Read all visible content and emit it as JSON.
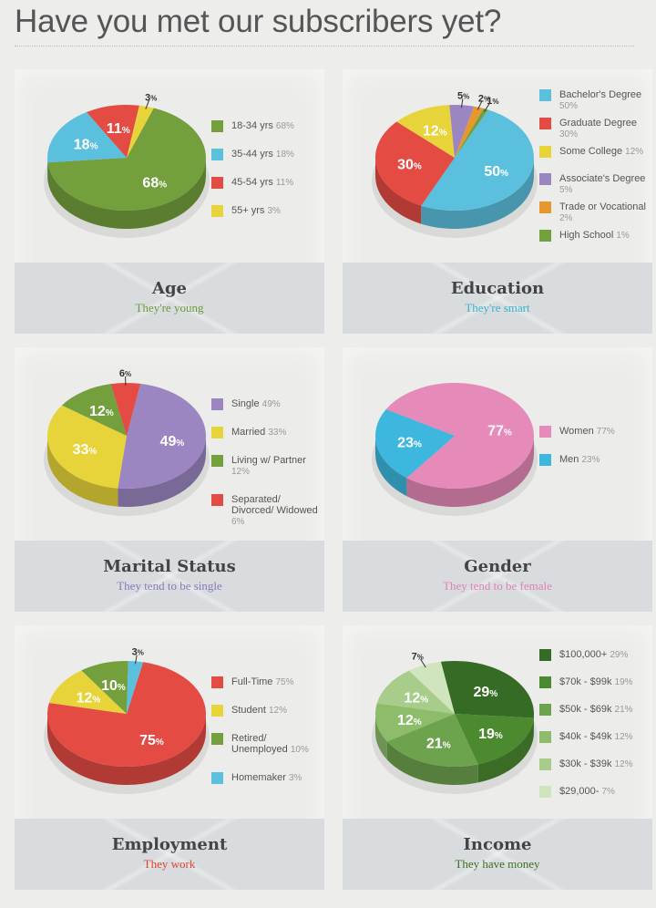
{
  "page": {
    "title": "Have you met our subscribers yet?"
  },
  "panels": [
    {
      "id": "age",
      "title": "Age",
      "subtitle": "They're young",
      "subtitle_color": "#6a9a3a",
      "legend": [
        {
          "label": "18-34 yrs",
          "pct": "68%",
          "color": "#73a03c"
        },
        {
          "label": "35-44 yrs",
          "pct": "18%",
          "color": "#5bc0de"
        },
        {
          "label": "45-54 yrs",
          "pct": "11%",
          "color": "#e34b43"
        },
        {
          "label": "55+ yrs",
          "pct": "3%",
          "color": "#e7d43a"
        }
      ]
    },
    {
      "id": "education",
      "title": "Education",
      "subtitle": "They're smart",
      "subtitle_color": "#3ab0d0",
      "legend": [
        {
          "label": "Bachelor's Degree",
          "pct": "50%",
          "color": "#5bc0de"
        },
        {
          "label": "Graduate Degree",
          "pct": "30%",
          "color": "#e34b43"
        },
        {
          "label": "Some College",
          "pct": "12%",
          "color": "#e7d43a"
        },
        {
          "label": "Associate's Degree",
          "pct": "5%",
          "color": "#9b86c2"
        },
        {
          "label": "Trade or Vocational",
          "pct": "2%",
          "color": "#e8972f"
        },
        {
          "label": "High School",
          "pct": "1%",
          "color": "#73a03c"
        }
      ]
    },
    {
      "id": "marital",
      "title": "Marital Status",
      "subtitle": "They tend to be single",
      "subtitle_color": "#8a78be",
      "legend": [
        {
          "label": "Single",
          "pct": "49%",
          "color": "#9b86c2"
        },
        {
          "label": "Married",
          "pct": "33%",
          "color": "#e7d43a"
        },
        {
          "label": "Living w/ Partner",
          "pct": "12%",
          "color": "#73a03c"
        },
        {
          "label": "Separated/ Divorced/ Widowed",
          "pct": "6%",
          "color": "#e34b43"
        }
      ]
    },
    {
      "id": "gender",
      "title": "Gender",
      "subtitle": "They tend to be female",
      "subtitle_color": "#e27eb5",
      "legend": [
        {
          "label": "Women",
          "pct": "77%",
          "color": "#e68ab9"
        },
        {
          "label": "Men",
          "pct": "23%",
          "color": "#3db7dd"
        }
      ]
    },
    {
      "id": "employment",
      "title": "Employment",
      "subtitle": "They work",
      "subtitle_color": "#e2402f",
      "legend": [
        {
          "label": "Full-Time",
          "pct": "75%",
          "color": "#e34b43"
        },
        {
          "label": "Student",
          "pct": "12%",
          "color": "#e7d43a"
        },
        {
          "label": "Retired/ Unemployed",
          "pct": "10%",
          "color": "#73a03c"
        },
        {
          "label": "Homemaker",
          "pct": "3%",
          "color": "#5bc0de"
        }
      ]
    },
    {
      "id": "income",
      "title": "Income",
      "subtitle": "They have money",
      "subtitle_color": "#3c6e22",
      "legend": [
        {
          "label": "$100,000+",
          "pct": "29%",
          "color": "#356b25"
        },
        {
          "label": "$70k - $99k",
          "pct": "19%",
          "color": "#4b8a2f"
        },
        {
          "label": "$50k - $69k",
          "pct": "21%",
          "color": "#6ea34e"
        },
        {
          "label": "$40k - $49k",
          "pct": "12%",
          "color": "#8dbc6a"
        },
        {
          "label": "$30k - $39k",
          "pct": "12%",
          "color": "#a8cd8a"
        },
        {
          "label": "$29,000-",
          "pct": "7%",
          "color": "#d0e4bd"
        }
      ]
    }
  ],
  "chart_data": [
    {
      "type": "pie",
      "title": "Age",
      "categories": [
        "18-34 yrs",
        "35-44 yrs",
        "45-54 yrs",
        "55+ yrs"
      ],
      "values": [
        68,
        18,
        11,
        3
      ],
      "labels": [
        "68%",
        "18%",
        "11%",
        "3%"
      ],
      "colors": [
        "#73a03c",
        "#5bc0de",
        "#e34b43",
        "#e7d43a"
      ]
    },
    {
      "type": "pie",
      "title": "Education",
      "categories": [
        "Bachelor's Degree",
        "Graduate Degree",
        "Some College",
        "Associate's Degree",
        "Trade or Vocational",
        "High School"
      ],
      "values": [
        50,
        30,
        12,
        5,
        2,
        1
      ],
      "labels": [
        "50%",
        "30%",
        "12%",
        "5%",
        "2%",
        "1%"
      ],
      "colors": [
        "#5bc0de",
        "#e34b43",
        "#e7d43a",
        "#9b86c2",
        "#e8972f",
        "#73a03c"
      ]
    },
    {
      "type": "pie",
      "title": "Marital Status",
      "categories": [
        "Single",
        "Married",
        "Living w/ Partner",
        "Separated/ Divorced/ Widowed"
      ],
      "values": [
        49,
        33,
        12,
        6
      ],
      "labels": [
        "49%",
        "33%",
        "12%",
        "6%"
      ],
      "colors": [
        "#9b86c2",
        "#e7d43a",
        "#73a03c",
        "#e34b43"
      ]
    },
    {
      "type": "pie",
      "title": "Gender",
      "categories": [
        "Women",
        "Men"
      ],
      "values": [
        77,
        23
      ],
      "labels": [
        "77%",
        "23%"
      ],
      "colors": [
        "#e68ab9",
        "#3db7dd"
      ]
    },
    {
      "type": "pie",
      "title": "Employment",
      "categories": [
        "Full-Time",
        "Student",
        "Retired/ Unemployed",
        "Homemaker"
      ],
      "values": [
        75,
        12,
        10,
        3
      ],
      "labels": [
        "75%",
        "12%",
        "10%",
        "3%"
      ],
      "colors": [
        "#e34b43",
        "#e7d43a",
        "#73a03c",
        "#5bc0de"
      ]
    },
    {
      "type": "pie",
      "title": "Income",
      "categories": [
        "$100,000+",
        "$70k - $99k",
        "$50k - $69k",
        "$40k - $49k",
        "$30k - $39k",
        "$29,000-"
      ],
      "values": [
        29,
        19,
        21,
        12,
        12,
        7
      ],
      "labels": [
        "29%",
        "19%",
        "21%",
        "12%",
        "12%",
        "7%"
      ],
      "colors": [
        "#356b25",
        "#4b8a2f",
        "#6ea34e",
        "#8dbc6a",
        "#a8cd8a",
        "#d0e4bd"
      ]
    }
  ]
}
